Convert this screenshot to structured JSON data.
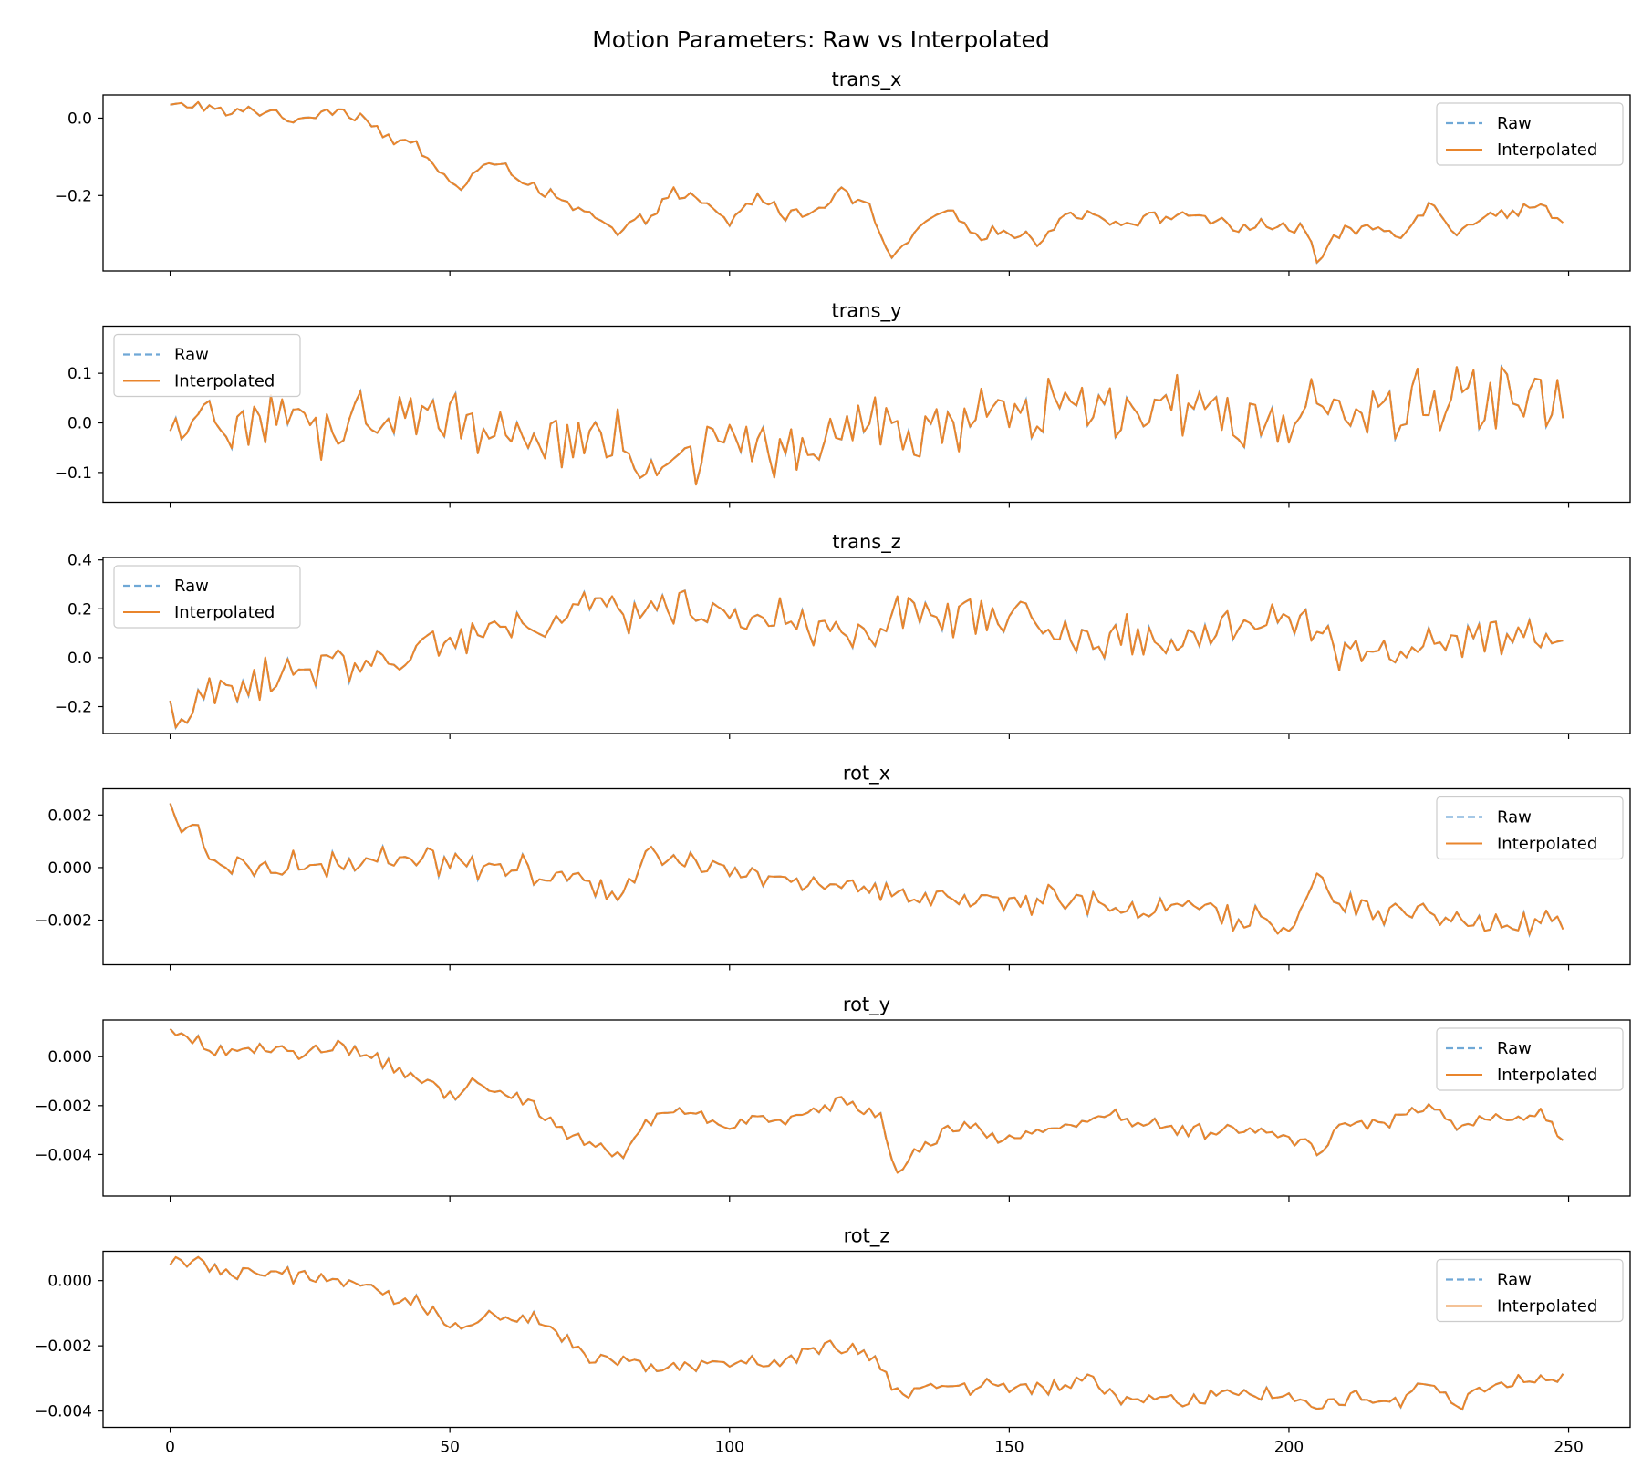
{
  "chart_data": {
    "type": "line",
    "title": "Motion Parameters: Raw vs Interpolated",
    "xlabel": "",
    "ylabel": "",
    "xlim": [
      -12,
      261
    ],
    "x_ticks": [
      0,
      50,
      100,
      150,
      200,
      250
    ],
    "sharex": true,
    "grid": false,
    "colors": {
      "raw": "#6fa8d6",
      "interpolated": "#e9852c"
    },
    "series_names": [
      "Raw",
      "Interpolated"
    ],
    "panels": [
      {
        "title": "trans_x",
        "legend": "top-right",
        "ylim": [
          -0.395,
          0.06
        ],
        "y_ticks": [
          0.0,
          -0.2
        ],
        "y_tick_labels": [
          "0.0",
          "−0.2"
        ],
        "anchors": [
          [
            0,
            0.03
          ],
          [
            5,
            0.035
          ],
          [
            10,
            0.01
          ],
          [
            15,
            0.02
          ],
          [
            20,
            0.015
          ],
          [
            23,
            -0.02
          ],
          [
            27,
            0.025
          ],
          [
            31,
            0.02
          ],
          [
            35,
            0.0
          ],
          [
            40,
            -0.06
          ],
          [
            44,
            -0.07
          ],
          [
            48,
            -0.14
          ],
          [
            52,
            -0.18
          ],
          [
            56,
            -0.12
          ],
          [
            60,
            -0.13
          ],
          [
            65,
            -0.17
          ],
          [
            70,
            -0.22
          ],
          [
            75,
            -0.25
          ],
          [
            80,
            -0.3
          ],
          [
            85,
            -0.26
          ],
          [
            90,
            -0.19
          ],
          [
            95,
            -0.22
          ],
          [
            100,
            -0.27
          ],
          [
            105,
            -0.2
          ],
          [
            110,
            -0.25
          ],
          [
            115,
            -0.24
          ],
          [
            120,
            -0.19
          ],
          [
            125,
            -0.23
          ],
          [
            129,
            -0.37
          ],
          [
            133,
            -0.3
          ],
          [
            138,
            -0.24
          ],
          [
            145,
            -0.3
          ],
          [
            150,
            -0.29
          ],
          [
            155,
            -0.32
          ],
          [
            160,
            -0.25
          ],
          [
            165,
            -0.25
          ],
          [
            170,
            -0.27
          ],
          [
            175,
            -0.26
          ],
          [
            180,
            -0.25
          ],
          [
            185,
            -0.25
          ],
          [
            190,
            -0.29
          ],
          [
            195,
            -0.27
          ],
          [
            200,
            -0.29
          ],
          [
            203,
            -0.28
          ],
          [
            205,
            -0.37
          ],
          [
            210,
            -0.29
          ],
          [
            215,
            -0.28
          ],
          [
            220,
            -0.3
          ],
          [
            225,
            -0.22
          ],
          [
            230,
            -0.29
          ],
          [
            235,
            -0.25
          ],
          [
            240,
            -0.24
          ],
          [
            245,
            -0.23
          ],
          [
            249,
            -0.26
          ]
        ],
        "noise": 0.014
      },
      {
        "title": "trans_y",
        "legend": "top-left",
        "ylim": [
          -0.16,
          0.195
        ],
        "y_ticks": [
          0.1,
          0.0,
          -0.1
        ],
        "y_tick_labels": [
          "0.1",
          "0.0",
          "−0.1"
        ],
        "anchors": [
          [
            0,
            -0.05
          ],
          [
            10,
            0.01
          ],
          [
            20,
            0.0
          ],
          [
            30,
            0.0
          ],
          [
            40,
            0.01
          ],
          [
            50,
            0.0
          ],
          [
            60,
            -0.01
          ],
          [
            70,
            -0.02
          ],
          [
            80,
            -0.05
          ],
          [
            90,
            -0.07
          ],
          [
            100,
            -0.05
          ],
          [
            110,
            -0.04
          ],
          [
            120,
            -0.02
          ],
          [
            125,
            0.01
          ],
          [
            130,
            -0.04
          ],
          [
            140,
            0.0
          ],
          [
            150,
            0.0
          ],
          [
            160,
            0.03
          ],
          [
            170,
            0.02
          ],
          [
            180,
            0.04
          ],
          [
            190,
            0.0
          ],
          [
            200,
            0.03
          ],
          [
            210,
            0.03
          ],
          [
            220,
            0.03
          ],
          [
            230,
            0.05
          ],
          [
            240,
            0.04
          ],
          [
            249,
            0.05
          ]
        ],
        "noise": 0.06
      },
      {
        "title": "trans_z",
        "legend": "top-left",
        "ylim": [
          -0.31,
          0.41
        ],
        "y_ticks": [
          0.4,
          0.2,
          0.0,
          -0.2
        ],
        "y_tick_labels": [
          "0.4",
          "0.2",
          "0.0",
          "−0.2"
        ],
        "anchors": [
          [
            0,
            -0.24
          ],
          [
            10,
            -0.14
          ],
          [
            20,
            -0.06
          ],
          [
            30,
            -0.02
          ],
          [
            40,
            0.0
          ],
          [
            50,
            0.07
          ],
          [
            60,
            0.1
          ],
          [
            70,
            0.17
          ],
          [
            80,
            0.2
          ],
          [
            90,
            0.2
          ],
          [
            100,
            0.18
          ],
          [
            110,
            0.16
          ],
          [
            120,
            0.08
          ],
          [
            125,
            0.03
          ],
          [
            130,
            0.2
          ],
          [
            140,
            0.17
          ],
          [
            150,
            0.16
          ],
          [
            155,
            0.15
          ],
          [
            160,
            0.07
          ],
          [
            170,
            0.1
          ],
          [
            180,
            0.07
          ],
          [
            190,
            0.14
          ],
          [
            200,
            0.14
          ],
          [
            210,
            0.03
          ],
          [
            220,
            0.03
          ],
          [
            230,
            0.05
          ],
          [
            240,
            0.07
          ],
          [
            249,
            0.11
          ]
        ],
        "noise": 0.075
      },
      {
        "title": "rot_x",
        "legend": "top-right",
        "ylim": [
          -0.0037,
          0.003
        ],
        "y_ticks": [
          0.002,
          0.0,
          -0.002
        ],
        "y_tick_labels": [
          "0.002",
          "0.000",
          "−0.002"
        ],
        "anchors": [
          [
            0,
            0.0022
          ],
          [
            5,
            0.0012
          ],
          [
            10,
            0.0
          ],
          [
            20,
            0.0001
          ],
          [
            30,
            0.0002
          ],
          [
            40,
            0.0004
          ],
          [
            50,
            0.0002
          ],
          [
            60,
            0.0
          ],
          [
            70,
            -0.0002
          ],
          [
            80,
            -0.001
          ],
          [
            85,
            0.0004
          ],
          [
            90,
            0.0004
          ],
          [
            100,
            0.0
          ],
          [
            110,
            -0.0003
          ],
          [
            115,
            -0.0008
          ],
          [
            120,
            -0.0004
          ],
          [
            128,
            -0.001
          ],
          [
            140,
            -0.0013
          ],
          [
            150,
            -0.0014
          ],
          [
            160,
            -0.0011
          ],
          [
            170,
            -0.0014
          ],
          [
            180,
            -0.0015
          ],
          [
            190,
            -0.0018
          ],
          [
            200,
            -0.0022
          ],
          [
            205,
            -0.0005
          ],
          [
            210,
            -0.0015
          ],
          [
            220,
            -0.0017
          ],
          [
            230,
            -0.0019
          ],
          [
            240,
            -0.0022
          ],
          [
            249,
            -0.0019
          ]
        ],
        "noise": 0.00045
      },
      {
        "title": "rot_y",
        "legend": "top-right",
        "ylim": [
          -0.0057,
          0.0015
        ],
        "y_ticks": [
          0.0,
          -0.002,
          -0.004
        ],
        "y_tick_labels": [
          "0.000",
          "−0.002",
          "−0.004"
        ],
        "anchors": [
          [
            0,
            0.0009
          ],
          [
            10,
            0.0002
          ],
          [
            20,
            0.0002
          ],
          [
            30,
            0.0004
          ],
          [
            35,
            0.0
          ],
          [
            40,
            -0.0005
          ],
          [
            45,
            -0.001
          ],
          [
            50,
            -0.0017
          ],
          [
            55,
            -0.0011
          ],
          [
            60,
            -0.0015
          ],
          [
            65,
            -0.002
          ],
          [
            70,
            -0.003
          ],
          [
            75,
            -0.0035
          ],
          [
            80,
            -0.004
          ],
          [
            85,
            -0.0028
          ],
          [
            90,
            -0.0021
          ],
          [
            100,
            -0.003
          ],
          [
            105,
            -0.0024
          ],
          [
            110,
            -0.0028
          ],
          [
            120,
            -0.0017
          ],
          [
            127,
            -0.0025
          ],
          [
            130,
            -0.0048
          ],
          [
            135,
            -0.0036
          ],
          [
            140,
            -0.0028
          ],
          [
            150,
            -0.0035
          ],
          [
            160,
            -0.0027
          ],
          [
            170,
            -0.0025
          ],
          [
            180,
            -0.003
          ],
          [
            190,
            -0.003
          ],
          [
            200,
            -0.0034
          ],
          [
            205,
            -0.0038
          ],
          [
            210,
            -0.0028
          ],
          [
            220,
            -0.0025
          ],
          [
            225,
            -0.0019
          ],
          [
            230,
            -0.003
          ],
          [
            235,
            -0.0024
          ],
          [
            240,
            -0.0025
          ],
          [
            245,
            -0.0022
          ],
          [
            249,
            -0.0032
          ]
        ],
        "noise": 0.00028
      },
      {
        "title": "rot_z",
        "legend": "top-right",
        "ylim": [
          -0.0045,
          0.0009
        ],
        "y_ticks": [
          0.0,
          -0.002,
          -0.004
        ],
        "y_tick_labels": [
          "0.000",
          "−0.002",
          "−0.004"
        ],
        "anchors": [
          [
            0,
            0.0007
          ],
          [
            10,
            0.0002
          ],
          [
            20,
            0.0002
          ],
          [
            30,
            0.0
          ],
          [
            35,
            -0.0002
          ],
          [
            40,
            -0.0005
          ],
          [
            45,
            -0.0007
          ],
          [
            50,
            -0.0015
          ],
          [
            55,
            -0.0011
          ],
          [
            60,
            -0.0012
          ],
          [
            65,
            -0.001
          ],
          [
            70,
            -0.0016
          ],
          [
            75,
            -0.0025
          ],
          [
            80,
            -0.0025
          ],
          [
            90,
            -0.0026
          ],
          [
            100,
            -0.0025
          ],
          [
            110,
            -0.0025
          ],
          [
            115,
            -0.0021
          ],
          [
            120,
            -0.002
          ],
          [
            125,
            -0.0023
          ],
          [
            130,
            -0.0033
          ],
          [
            140,
            -0.0033
          ],
          [
            150,
            -0.0033
          ],
          [
            160,
            -0.0032
          ],
          [
            165,
            -0.0029
          ],
          [
            170,
            -0.0037
          ],
          [
            180,
            -0.0037
          ],
          [
            190,
            -0.0035
          ],
          [
            200,
            -0.0034
          ],
          [
            205,
            -0.0038
          ],
          [
            210,
            -0.0036
          ],
          [
            220,
            -0.0037
          ],
          [
            225,
            -0.003
          ],
          [
            230,
            -0.0038
          ],
          [
            235,
            -0.0032
          ],
          [
            240,
            -0.0031
          ],
          [
            249,
            -0.0031
          ]
        ],
        "noise": 0.00022
      }
    ]
  }
}
